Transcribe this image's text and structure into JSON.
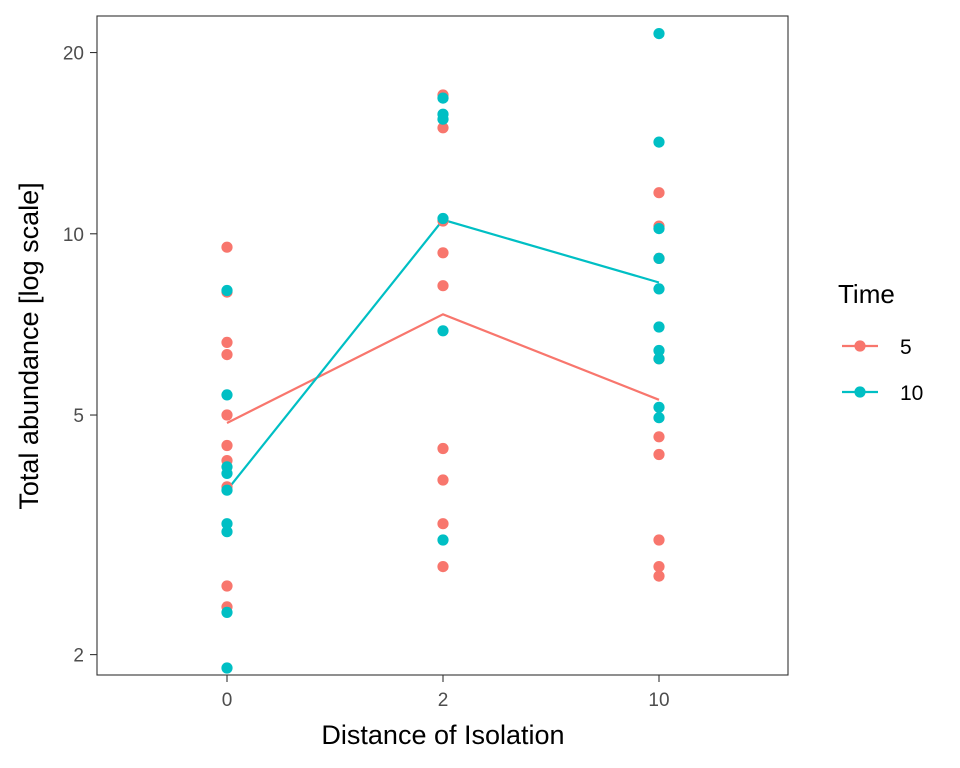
{
  "chart_data": {
    "type": "scatter",
    "xlabel": "Distance of Isolation",
    "ylabel": "Total abundance [log scale]",
    "y_scale": "log",
    "ylim": [
      1.85,
      23.0
    ],
    "categories": [
      "0",
      "2",
      "10"
    ],
    "y_ticks": [
      2,
      5,
      10,
      20
    ],
    "grid": false,
    "legend": {
      "title": "Time",
      "placement": "right"
    },
    "series": [
      {
        "name": "5",
        "color": "#F8766D",
        "points": {
          "0": [
            9.5,
            8.0,
            6.6,
            6.3,
            5.0,
            4.45,
            4.2,
            3.8,
            2.6,
            2.4
          ],
          "2": [
            17.0,
            15.0,
            10.5,
            9.3,
            8.2,
            4.4,
            3.9,
            3.3,
            2.8
          ],
          "10": [
            11.7,
            10.3,
            9.1,
            6.2,
            4.6,
            4.3,
            3.1,
            2.8,
            2.7
          ]
        },
        "line": [
          4.85,
          7.35,
          5.3
        ]
      },
      {
        "name": "10",
        "color": "#00BFC4",
        "points": {
          "0": [
            8.05,
            5.4,
            4.1,
            4.0,
            3.75,
            3.3,
            3.2,
            2.35,
            1.9
          ],
          "2": [
            16.8,
            15.8,
            15.5,
            10.6,
            6.9,
            3.1
          ],
          "10": [
            21.5,
            14.2,
            10.2,
            9.1,
            8.1,
            7.0,
            6.4,
            6.2,
            5.15,
            4.95
          ]
        },
        "line": [
          3.75,
          10.55,
          8.3
        ]
      }
    ]
  }
}
